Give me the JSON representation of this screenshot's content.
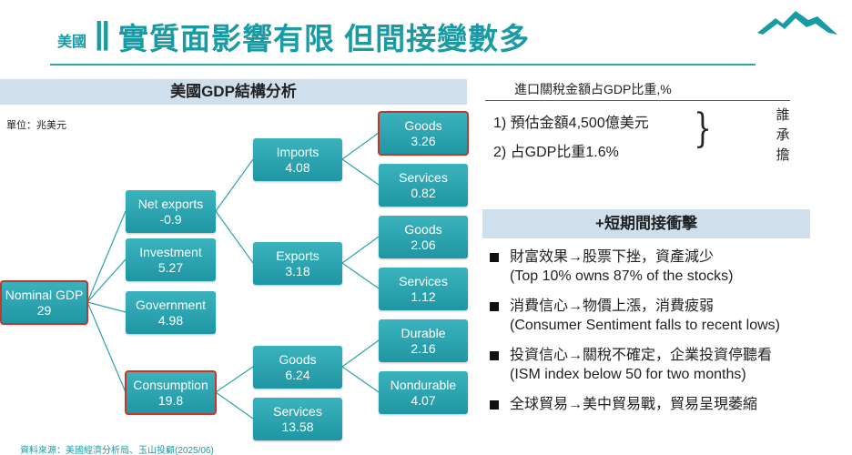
{
  "header": {
    "tag": "美國",
    "bars": "||",
    "title": "實質面影響有限 但間接變數多"
  },
  "left_panel": {
    "band_title": "美國GDP結構分析",
    "unit": "單位：兆美元",
    "source": "資料來源：美國經濟分析局、玉山投顧(2025/06)"
  },
  "tree": {
    "root": {
      "label": "Nominal GDP",
      "value": "29"
    },
    "net_exports": {
      "label": "Net exports",
      "value": "-0.9"
    },
    "investment": {
      "label": "Investment",
      "value": "5.27"
    },
    "government": {
      "label": "Government",
      "value": "4.98"
    },
    "consumption": {
      "label": "Consumption",
      "value": "19.8"
    },
    "imports": {
      "label": "Imports",
      "value": "4.08"
    },
    "exports": {
      "label": "Exports",
      "value": "3.18"
    },
    "cons_goods": {
      "label": "Goods",
      "value": "6.24"
    },
    "cons_services": {
      "label": "Services",
      "value": "13.58"
    },
    "imp_goods": {
      "label": "Goods",
      "value": "3.26"
    },
    "imp_services": {
      "label": "Services",
      "value": "0.82"
    },
    "exp_goods": {
      "label": "Goods",
      "value": "2.06"
    },
    "exp_services": {
      "label": "Services",
      "value": "1.12"
    },
    "durable": {
      "label": "Durable",
      "value": "2.16"
    },
    "nondurable": {
      "label": "Nondurable",
      "value": "4.07"
    }
  },
  "right_panel": {
    "heading": "進口關稅金額占GDP比重,%",
    "items": [
      "1)  預估金額4,500億美元",
      "2)  占GDP比重1.6%"
    ],
    "brace": "}",
    "who": [
      "誰",
      "承",
      "擔"
    ],
    "band_title": "+短期間接衝擊",
    "bullets": [
      {
        "line1": "財富效果→股票下挫，資產減少",
        "line2": "(Top 10% owns 87% of the stocks)"
      },
      {
        "line1": "消費信心→物價上漲，消費疲弱",
        "line2": "(Consumer Sentiment falls to recent lows)"
      },
      {
        "line1": "投資信心→關稅不確定，企業投資停聽看",
        "line2": "(ISM index below 50 for two months)"
      },
      {
        "line1": "全球貿易→美中貿易戰，貿易呈現萎縮",
        "line2": ""
      }
    ]
  },
  "colors": {
    "accent": "#1a9aa3",
    "node": "#2ba4af",
    "highlight": "#c0392b",
    "band": "#cfe0ec"
  }
}
